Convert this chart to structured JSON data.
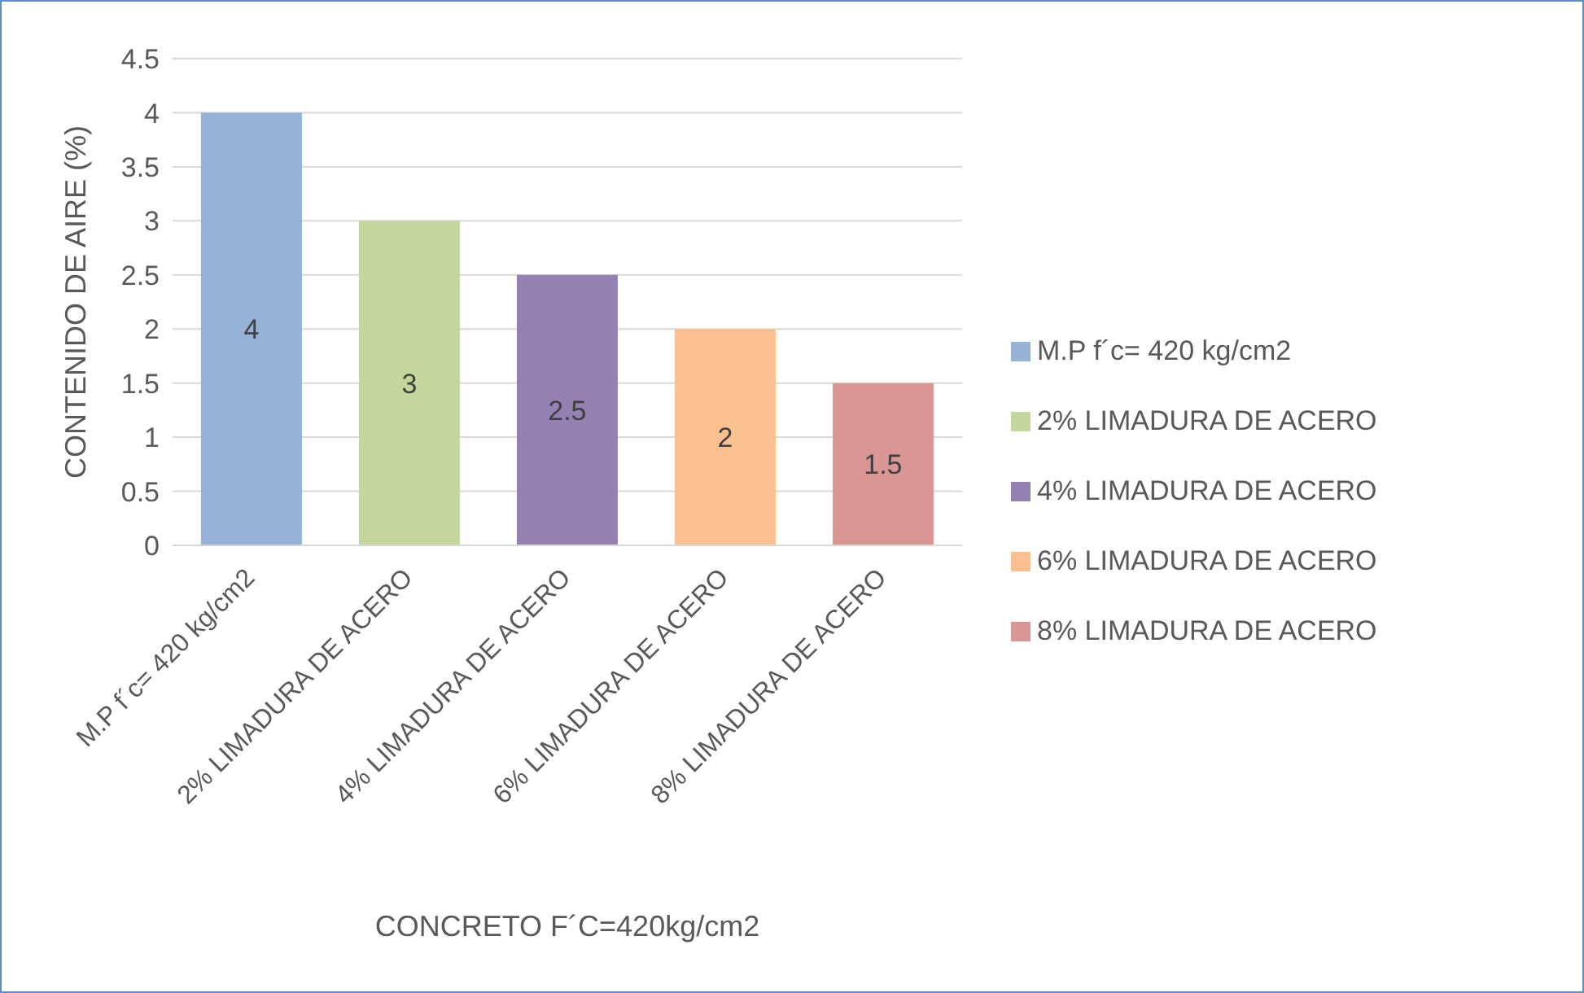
{
  "chart_data": {
    "type": "bar",
    "xlabel": "CONCRETO F´C=420kg/cm2",
    "ylabel": "CONTENIDO DE AIRE (%)",
    "categories": [
      "M.P f´c= 420 kg/cm2",
      "2% LIMADURA DE ACERO",
      "4% LIMADURA DE ACERO",
      "6% LIMADURA DE ACERO",
      "8% LIMADURA DE ACERO"
    ],
    "series": [
      {
        "name": "M.P f´c= 420 kg/cm2",
        "color": "#95b3d7",
        "values": [
          4,
          null,
          null,
          null,
          null
        ]
      },
      {
        "name": "2% LIMADURA DE ACERO",
        "color": "#c3d69b",
        "values": [
          null,
          3,
          null,
          null,
          null
        ]
      },
      {
        "name": "4% LIMADURA DE ACERO",
        "color": "#9580b4",
        "values": [
          null,
          null,
          2.5,
          null,
          null
        ]
      },
      {
        "name": "6% LIMADURA DE ACERO",
        "color": "#fac090",
        "values": [
          null,
          null,
          null,
          2,
          null
        ]
      },
      {
        "name": "8% LIMADURA DE ACERO",
        "color": "#d99694",
        "values": [
          null,
          null,
          null,
          null,
          1.5
        ]
      }
    ],
    "stacked": true,
    "ylim": [
      0,
      4.5
    ],
    "yticks": [
      0,
      0.5,
      1,
      1.5,
      2,
      2.5,
      3,
      3.5,
      4,
      4.5
    ],
    "grid": "y",
    "legend": "right",
    "data_labels": true
  }
}
